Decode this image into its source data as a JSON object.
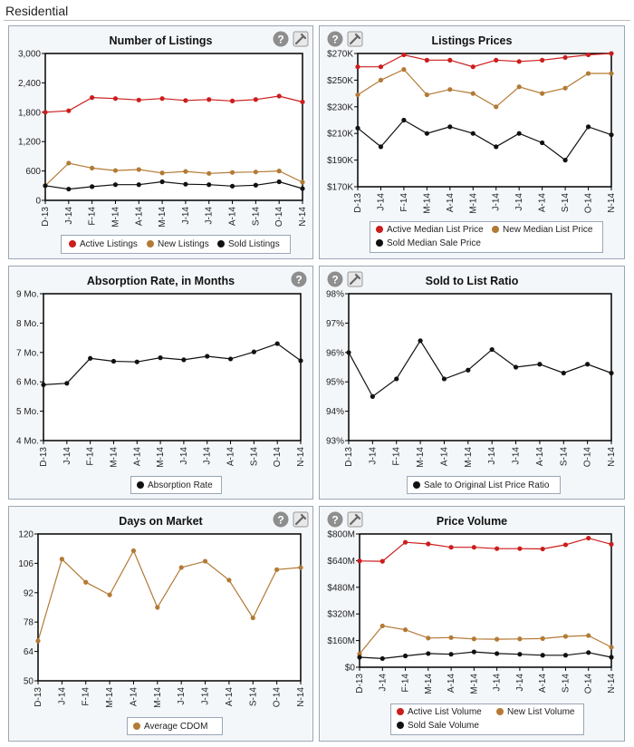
{
  "page_title": "Residential",
  "colors": {
    "active": "#cc1d1d",
    "new": "#b37a35",
    "sold": "#111111"
  },
  "legend_labels": {
    "active_listings": "Active Listings",
    "new_listings": "New Listings",
    "sold_listings": "Sold Listings",
    "active_median": "Active Median List Price",
    "new_median": "New Median List Price",
    "sold_median": "Sold Median Sale Price",
    "absorption": "Absorption Rate",
    "ratio": "Sale to Original List Price Ratio",
    "cdom": "Average CDOM",
    "active_volume": "Active List Volume",
    "new_volume": "New List Volume",
    "sold_volume": "Sold Sale Volume"
  },
  "chart_data": [
    {
      "id": "listings",
      "type": "line",
      "title": "Number of Listings",
      "categories": [
        "D-13",
        "J-14",
        "F-14",
        "M-14",
        "A-14",
        "M-14",
        "J-14",
        "J-14",
        "A-14",
        "S-14",
        "O-14",
        "N-14"
      ],
      "ylim": [
        0,
        3000
      ],
      "yticks": [
        0,
        600,
        1200,
        1800,
        2400,
        3000
      ],
      "ytick_labels": [
        "0",
        "600",
        "1,200",
        "1,800",
        "2,400",
        "3,000"
      ],
      "series": [
        {
          "name": "Active Listings",
          "color": "#cc1d1d",
          "values": [
            1800,
            1830,
            2100,
            2080,
            2050,
            2080,
            2040,
            2060,
            2030,
            2060,
            2130,
            2010
          ]
        },
        {
          "name": "New Listings",
          "color": "#b37a35",
          "values": [
            300,
            760,
            660,
            610,
            630,
            560,
            590,
            550,
            570,
            580,
            600,
            370
          ]
        },
        {
          "name": "Sold Listings",
          "color": "#111111",
          "values": [
            300,
            230,
            280,
            320,
            320,
            380,
            330,
            320,
            290,
            310,
            380,
            240
          ]
        }
      ]
    },
    {
      "id": "prices",
      "type": "line",
      "title": "Listings Prices",
      "categories": [
        "D-13",
        "J-14",
        "F-14",
        "M-14",
        "A-14",
        "M-14",
        "J-14",
        "J-14",
        "A-14",
        "S-14",
        "O-14",
        "N-14"
      ],
      "ylim": [
        170000,
        270000
      ],
      "yticks": [
        170000,
        190000,
        210000,
        230000,
        250000,
        270000
      ],
      "ytick_labels": [
        "$170K",
        "$190K",
        "$210K",
        "$230K",
        "$250K",
        "$270K"
      ],
      "series": [
        {
          "name": "Active Median List Price",
          "color": "#cc1d1d",
          "values": [
            260000,
            260000,
            269000,
            265000,
            265000,
            260000,
            265000,
            264000,
            265000,
            267000,
            269000,
            270000
          ]
        },
        {
          "name": "New Median List Price",
          "color": "#b37a35",
          "values": [
            239000,
            250000,
            258000,
            239000,
            243000,
            240000,
            230000,
            245000,
            240000,
            244000,
            255000,
            255000
          ]
        },
        {
          "name": "Sold Median Sale Price",
          "color": "#111111",
          "values": [
            214000,
            200000,
            220000,
            210000,
            215000,
            210000,
            200000,
            210000,
            203000,
            190000,
            215000,
            209000
          ]
        }
      ]
    },
    {
      "id": "absorption",
      "type": "line",
      "title": "Absorption Rate, in Months",
      "categories": [
        "D-13",
        "J-14",
        "F-14",
        "M-14",
        "A-14",
        "M-14",
        "J-14",
        "J-14",
        "A-14",
        "S-14",
        "O-14",
        "N-14"
      ],
      "ylim": [
        4,
        9
      ],
      "yticks": [
        4,
        5,
        6,
        7,
        8,
        9
      ],
      "ytick_labels": [
        "4 Mo.",
        "5 Mo.",
        "6 Mo.",
        "7 Mo.",
        "8 Mo.",
        "9 Mo."
      ],
      "series": [
        {
          "name": "Absorption Rate",
          "color": "#111111",
          "values": [
            5.9,
            5.95,
            6.8,
            6.7,
            6.68,
            6.82,
            6.75,
            6.87,
            6.78,
            7.02,
            7.3,
            6.72
          ]
        }
      ]
    },
    {
      "id": "ratio",
      "type": "line",
      "title": "Sold to List Ratio",
      "categories": [
        "D-13",
        "J-14",
        "F-14",
        "M-14",
        "A-14",
        "M-14",
        "J-14",
        "J-14",
        "A-14",
        "S-14",
        "O-14",
        "N-14"
      ],
      "ylim": [
        93,
        98
      ],
      "yticks": [
        93,
        94,
        95,
        96,
        97,
        98
      ],
      "ytick_labels": [
        "93%",
        "94%",
        "95%",
        "96%",
        "97%",
        "98%"
      ],
      "series": [
        {
          "name": "Sale to Original List Price Ratio",
          "color": "#111111",
          "values": [
            96.0,
            94.5,
            95.1,
            96.4,
            95.1,
            95.4,
            96.1,
            95.5,
            95.6,
            95.3,
            95.6,
            95.3
          ]
        }
      ]
    },
    {
      "id": "dom",
      "type": "line",
      "title": "Days on Market",
      "categories": [
        "D-13",
        "J-14",
        "F-14",
        "M-14",
        "A-14",
        "M-14",
        "J-14",
        "J-14",
        "A-14",
        "S-14",
        "O-14",
        "N-14"
      ],
      "ylim": [
        50,
        120
      ],
      "yticks": [
        50,
        64,
        78,
        92,
        106,
        120
      ],
      "ytick_labels": [
        "50",
        "64",
        "78",
        "92",
        "106",
        "120"
      ],
      "series": [
        {
          "name": "Average CDOM",
          "color": "#b37a35",
          "values": [
            69,
            108,
            97,
            91,
            112,
            85,
            104,
            107,
            98,
            80,
            103,
            104
          ]
        }
      ]
    },
    {
      "id": "volume",
      "type": "line",
      "title": "Price Volume",
      "categories": [
        "D-13",
        "J-14",
        "F-14",
        "M-14",
        "A-14",
        "M-14",
        "J-14",
        "J-14",
        "A-14",
        "S-14",
        "O-14",
        "N-14"
      ],
      "ylim": [
        0,
        800
      ],
      "yticks": [
        0,
        160,
        320,
        480,
        640,
        800
      ],
      "ytick_labels": [
        "$0",
        "$160M",
        "$320M",
        "$480M",
        "$640M",
        "$800M"
      ],
      "series": [
        {
          "name": "Active List Volume",
          "color": "#cc1d1d",
          "values": [
            638,
            636,
            750,
            740,
            720,
            720,
            712,
            712,
            710,
            735,
            775,
            738
          ]
        },
        {
          "name": "New List Volume",
          "color": "#b37a35",
          "values": [
            80,
            248,
            225,
            175,
            178,
            170,
            168,
            170,
            172,
            185,
            190,
            120
          ]
        },
        {
          "name": "Sold Sale Volume",
          "color": "#111111",
          "values": [
            60,
            52,
            68,
            82,
            78,
            92,
            82,
            78,
            72,
            72,
            88,
            60
          ]
        }
      ]
    }
  ]
}
